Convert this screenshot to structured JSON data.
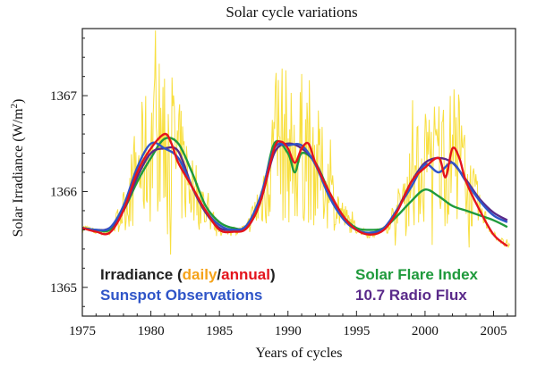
{
  "chart_data": {
    "type": "line",
    "title": "Solar cycle  variations",
    "xlabel": "Years of cycles",
    "ylabel_main": "Solar Irradiance (W/m",
    "ylabel_sup": "2",
    "ylabel_end": ")",
    "xlim": [
      1975,
      2006.6
    ],
    "ylim": [
      1364.7,
      1367.7
    ],
    "xticks": [
      1975,
      1980,
      1985,
      1990,
      1995,
      2000,
      2005
    ],
    "xtick_labels": [
      "1975",
      "1980",
      "1985",
      "1990",
      "1995",
      "2000",
      "2005"
    ],
    "yticks": [
      1365,
      1366,
      1367
    ],
    "ytick_labels": [
      "1365",
      "1366",
      "1367"
    ],
    "grid": false,
    "legend": {
      "irradiance_prefix": "Irradiance (",
      "irradiance_daily": "daily",
      "irradiance_slash": "/",
      "irradiance_annual": "annual",
      "irradiance_suffix": ")",
      "sunspot": "Sunspot Observations",
      "flare": "Solar Flare Index",
      "radio": "10.7 Radio Flux"
    },
    "colors": {
      "daily": "#f7dc2a",
      "daily_label": "#f5a31a",
      "annual": "#e4141c",
      "sunspot": "#2f55c8",
      "flare": "#1f9a3c",
      "radio": "#5a2a8a",
      "irradiance_label": "#222222"
    },
    "series": [
      {
        "key": "annual",
        "name": "annual",
        "x": [
          1975,
          1976,
          1977,
          1978,
          1979,
          1980,
          1981,
          1981.5,
          1982,
          1983,
          1984,
          1985,
          1986,
          1987,
          1988,
          1989,
          1989.5,
          1990,
          1990.5,
          1991,
          1991.5,
          1992,
          1993,
          1994,
          1995,
          1996,
          1997,
          1998,
          1999,
          2000,
          2001,
          2001.5,
          2002,
          2002.5,
          2003,
          2004,
          2005,
          2006
        ],
        "y": [
          1365.62,
          1365.58,
          1365.57,
          1365.8,
          1366.2,
          1366.45,
          1366.6,
          1366.5,
          1366.3,
          1366.05,
          1365.8,
          1365.6,
          1365.58,
          1365.62,
          1365.9,
          1366.45,
          1366.52,
          1366.45,
          1366.3,
          1366.45,
          1366.5,
          1366.3,
          1366.0,
          1365.75,
          1365.6,
          1365.55,
          1365.6,
          1365.8,
          1366.1,
          1366.25,
          1366.35,
          1366.15,
          1366.45,
          1366.35,
          1366.1,
          1365.8,
          1365.55,
          1365.43
        ]
      },
      {
        "key": "sunspot",
        "name": "Sunspot Observations",
        "x": [
          1975,
          1976,
          1977,
          1978,
          1979,
          1980,
          1981,
          1982,
          1983,
          1984,
          1985,
          1986,
          1987,
          1988,
          1989,
          1990,
          1991,
          1992,
          1993,
          1994,
          1995,
          1996,
          1997,
          1998,
          1999,
          2000,
          2001,
          2002,
          2003,
          2004,
          2005,
          2006
        ],
        "y": [
          1365.62,
          1365.6,
          1365.62,
          1365.85,
          1366.25,
          1366.5,
          1366.45,
          1366.35,
          1366.05,
          1365.8,
          1365.65,
          1365.6,
          1365.65,
          1365.95,
          1366.45,
          1366.48,
          1366.48,
          1366.28,
          1365.95,
          1365.72,
          1365.6,
          1365.57,
          1365.62,
          1365.82,
          1366.05,
          1366.28,
          1366.2,
          1366.3,
          1366.1,
          1365.9,
          1365.75,
          1365.68
        ]
      },
      {
        "key": "flare",
        "name": "Solar Flare Index",
        "x": [
          1975,
          1976,
          1977,
          1978,
          1979,
          1980,
          1981,
          1982,
          1983,
          1984,
          1985,
          1986,
          1987,
          1988,
          1989,
          1990,
          1990.5,
          1991,
          1992,
          1993,
          1994,
          1995,
          1996,
          1997,
          1998,
          1999,
          2000,
          2001,
          2002,
          2003,
          2004,
          2005,
          2006
        ],
        "y": [
          1365.62,
          1365.6,
          1365.6,
          1365.8,
          1366.1,
          1366.35,
          1366.55,
          1366.5,
          1366.2,
          1365.85,
          1365.68,
          1365.62,
          1365.63,
          1365.9,
          1366.5,
          1366.4,
          1366.2,
          1366.4,
          1366.3,
          1366.0,
          1365.75,
          1365.62,
          1365.6,
          1365.62,
          1365.75,
          1365.9,
          1366.02,
          1365.95,
          1365.85,
          1365.8,
          1365.75,
          1365.7,
          1365.63
        ]
      },
      {
        "key": "radio",
        "name": "10.7 Radio Flux",
        "x": [
          1975,
          1976,
          1977,
          1978,
          1979,
          1980,
          1981,
          1982,
          1983,
          1984,
          1985,
          1986,
          1987,
          1988,
          1989,
          1990,
          1991,
          1992,
          1993,
          1994,
          1995,
          1996,
          1997,
          1998,
          1999,
          2000,
          2001,
          2002,
          2003,
          2004,
          2005,
          2006
        ],
        "y": [
          1365.62,
          1365.6,
          1365.62,
          1365.8,
          1366.15,
          1366.4,
          1366.45,
          1366.42,
          1366.05,
          1365.78,
          1365.62,
          1365.6,
          1365.62,
          1365.9,
          1366.4,
          1366.5,
          1366.45,
          1366.3,
          1365.98,
          1365.72,
          1365.6,
          1365.57,
          1365.62,
          1365.82,
          1366.1,
          1366.3,
          1366.35,
          1366.3,
          1366.12,
          1365.92,
          1365.78,
          1365.7
        ]
      }
    ]
  }
}
